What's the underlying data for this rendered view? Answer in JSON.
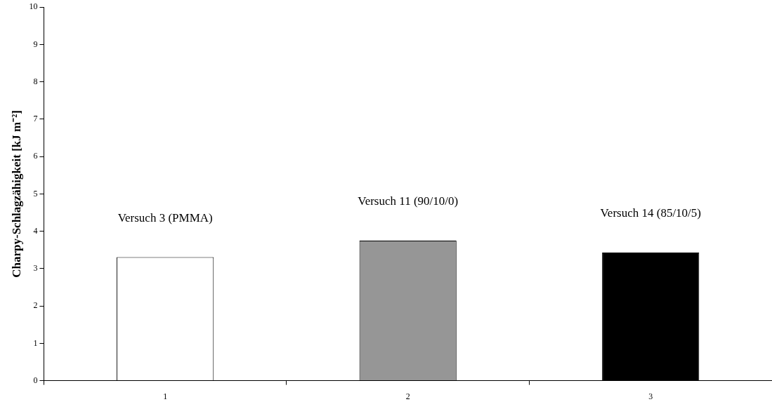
{
  "chart_data": {
    "type": "bar",
    "ylabel": "Charpy-Schlagzähigkeit [kJ m⁻²]",
    "categories": [
      "1",
      "2",
      "3"
    ],
    "values": [
      3.31,
      3.75,
      3.43
    ],
    "colors": [
      "#ffffff",
      "#969696",
      "#000000"
    ],
    "ylim": [
      0,
      10
    ],
    "yticks": [
      0,
      1,
      2,
      3,
      4,
      5,
      6,
      7,
      8,
      9,
      10
    ],
    "grid": false,
    "legend": false,
    "annotations": [
      "Versuch 3 (PMMA)",
      "Versuch 11 (90/10/0)",
      "Versuch 14 (85/10/5)"
    ]
  }
}
